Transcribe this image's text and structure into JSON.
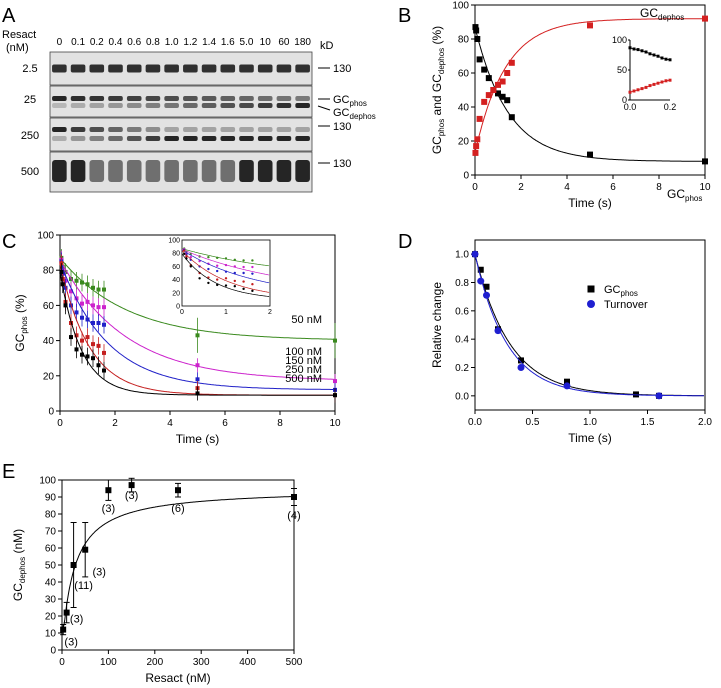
{
  "panels": {
    "A": "A",
    "B": "B",
    "C": "C",
    "D": "D",
    "E": "E"
  },
  "blot": {
    "row_title": "Resact",
    "row_unit": "(nM)",
    "concentrations": [
      "0",
      "0.1",
      "0.2",
      "0.4",
      "0.6",
      "0.8",
      "1.0",
      "1.2",
      "1.4",
      "1.6",
      "5.0",
      "10",
      "60",
      "180"
    ],
    "rows": [
      "2.5",
      "25",
      "250",
      "500"
    ],
    "kd_label": "kD",
    "markers": [
      "130",
      "130",
      "130"
    ],
    "gc_phos_base": "GC",
    "gc_phos_sub": "phos",
    "gc_dephos_base": "GC",
    "gc_dephos_sub": "dephos"
  },
  "chart_data": [
    {
      "panel": "B",
      "type": "scatter",
      "xlabel": "Time (s)",
      "ylabel_parts": [
        "GC",
        "phos",
        " and GC",
        "dephos",
        " (%)"
      ],
      "xlim": [
        0,
        10
      ],
      "ylim": [
        0,
        100
      ],
      "xticks": [
        0,
        2,
        4,
        6,
        8,
        10
      ],
      "yticks": [
        0,
        20,
        40,
        60,
        80,
        100
      ],
      "series": [
        {
          "name": "GCphos",
          "color": "#000000",
          "x": [
            0.02,
            0.05,
            0.1,
            0.2,
            0.4,
            0.6,
            0.8,
            1.0,
            1.2,
            1.4,
            1.6,
            5.0,
            10
          ],
          "y": [
            87,
            85,
            80,
            68,
            62,
            57,
            50,
            48,
            46,
            44,
            34,
            12,
            8
          ],
          "label_base": "GC",
          "label_sub": "phos"
        },
        {
          "name": "GCdephos",
          "color": "#d42020",
          "x": [
            0.02,
            0.05,
            0.1,
            0.2,
            0.4,
            0.6,
            0.8,
            1.0,
            1.2,
            1.4,
            1.6,
            5.0,
            10
          ],
          "y": [
            13,
            17,
            21,
            33,
            43,
            47,
            50,
            53,
            55,
            60,
            66,
            88,
            92
          ],
          "label_base": "GC",
          "label_sub": "dephos"
        }
      ],
      "inset": {
        "xlim": [
          0,
          0.2
        ],
        "ylim": [
          0,
          100
        ],
        "xticks": [
          0,
          0.2
        ],
        "yticks": [
          0,
          50,
          100
        ],
        "xticklabels": [
          "0.0",
          "0.2"
        ],
        "yticklabels": [
          "0",
          "50",
          "100"
        ],
        "black": [
          87,
          85,
          84,
          82,
          80,
          77,
          75,
          73,
          70,
          68,
          67
        ],
        "red": [
          13,
          15,
          17,
          19,
          21,
          24,
          26,
          28,
          30,
          32,
          33
        ]
      }
    },
    {
      "panel": "C",
      "type": "scatter",
      "xlabel": "Time (s)",
      "ylabel_parts": [
        "GC",
        "phos",
        " (%)"
      ],
      "xlim": [
        0,
        10
      ],
      "ylim": [
        0,
        100
      ],
      "xticks": [
        0,
        2,
        4,
        6,
        8,
        10
      ],
      "yticks": [
        0,
        20,
        40,
        60,
        80,
        100
      ],
      "series": [
        {
          "name": "50 nM",
          "color": "#3a8a1e",
          "x": [
            0.05,
            0.1,
            0.2,
            0.4,
            0.6,
            0.8,
            1.0,
            1.2,
            1.4,
            1.6,
            5,
            10
          ],
          "y": [
            87,
            82,
            79,
            75,
            74,
            73,
            72,
            70,
            69,
            69,
            43,
            40
          ]
        },
        {
          "name": "100 nM",
          "color": "#cc22cc",
          "x": [
            0.05,
            0.1,
            0.2,
            0.4,
            0.6,
            0.8,
            1.0,
            1.2,
            1.4,
            1.6,
            5,
            10
          ],
          "y": [
            86,
            80,
            74,
            68,
            64,
            61,
            62,
            60,
            59,
            59,
            26,
            17
          ]
        },
        {
          "name": "150 nM",
          "color": "#2020c8",
          "x": [
            0.05,
            0.1,
            0.2,
            0.4,
            0.6,
            0.8,
            1.0,
            1.2,
            1.4,
            1.6,
            5,
            10
          ],
          "y": [
            85,
            78,
            70,
            60,
            56,
            53,
            52,
            50,
            50,
            49,
            18,
            12
          ]
        },
        {
          "name": "250 nM",
          "color": "#c41e1e",
          "x": [
            0.05,
            0.1,
            0.2,
            0.4,
            0.6,
            0.8,
            1.0,
            1.2,
            1.4,
            1.6,
            5,
            10
          ],
          "y": [
            84,
            75,
            62,
            50,
            43,
            40,
            42,
            38,
            37,
            33,
            13,
            9
          ]
        },
        {
          "name": "500 nM",
          "color": "#000000",
          "x": [
            0.05,
            0.1,
            0.2,
            0.4,
            0.6,
            0.8,
            1.0,
            1.2,
            1.4,
            1.6,
            5,
            10
          ],
          "y": [
            79,
            72,
            60,
            42,
            35,
            32,
            31,
            30,
            26,
            23,
            10,
            9
          ]
        }
      ],
      "inset": {
        "xlim": [
          0,
          2
        ],
        "ylim": [
          0,
          100
        ],
        "xticks": [
          0,
          1,
          2
        ],
        "yticks": [
          0,
          20,
          40,
          60,
          80,
          100
        ],
        "xticklabels": [
          "0",
          "1",
          "2"
        ],
        "yticklabels": [
          "0",
          "20",
          "40",
          "60",
          "80",
          "100"
        ]
      }
    },
    {
      "panel": "D",
      "type": "scatter",
      "xlabel": "Time (s)",
      "ylabel": "Relative change",
      "xlim": [
        0,
        2
      ],
      "ylim": [
        -0.1,
        1.1
      ],
      "xticks": [
        0,
        0.5,
        1.0,
        1.5,
        2.0
      ],
      "yticks": [
        0,
        0.2,
        0.4,
        0.6,
        0.8,
        1.0
      ],
      "xticklabels": [
        "0.0",
        "0.5",
        "1.0",
        "1.5",
        "2.0"
      ],
      "yticklabels": [
        "0.0",
        "0.2",
        "0.4",
        "0.6",
        "0.8",
        "1.0"
      ],
      "legend_loc": "right",
      "series": [
        {
          "name": "GCphos",
          "label_base": "GC",
          "label_sub": "phos",
          "color": "#000000",
          "marker": "square",
          "x": [
            0.0,
            0.05,
            0.1,
            0.2,
            0.4,
            0.8,
            1.4,
            1.6
          ],
          "y": [
            1.0,
            0.89,
            0.77,
            0.47,
            0.25,
            0.1,
            0.01,
            0.0
          ]
        },
        {
          "name": "Turnover",
          "label_base": "Turnover",
          "label_sub": "",
          "color": "#1f1fd0",
          "marker": "circle",
          "x": [
            0.0,
            0.05,
            0.1,
            0.2,
            0.4,
            0.8,
            1.6
          ],
          "y": [
            1.0,
            0.81,
            0.71,
            0.46,
            0.2,
            0.07,
            0.0
          ]
        }
      ]
    },
    {
      "panel": "E",
      "type": "scatter",
      "xlabel": "Resact (nM)",
      "ylabel_parts": [
        "GC",
        "dephos",
        " (nM)"
      ],
      "xlim": [
        0,
        500
      ],
      "ylim": [
        0,
        100
      ],
      "xticks": [
        0,
        100,
        200,
        300,
        400,
        500
      ],
      "yticks": [
        0,
        10,
        20,
        30,
        40,
        50,
        60,
        70,
        80,
        90,
        100
      ],
      "x": [
        2.5,
        10,
        25,
        50,
        100,
        150,
        250,
        500
      ],
      "y": [
        12,
        22,
        50,
        59,
        94,
        97,
        94,
        90
      ],
      "err": [
        3,
        6,
        25,
        16,
        6,
        4,
        4,
        5
      ],
      "n_labels": [
        "(3)",
        "(3)",
        "(11)",
        "(3)",
        "(3)",
        "(3)",
        "(6)",
        "(4)"
      ]
    }
  ]
}
